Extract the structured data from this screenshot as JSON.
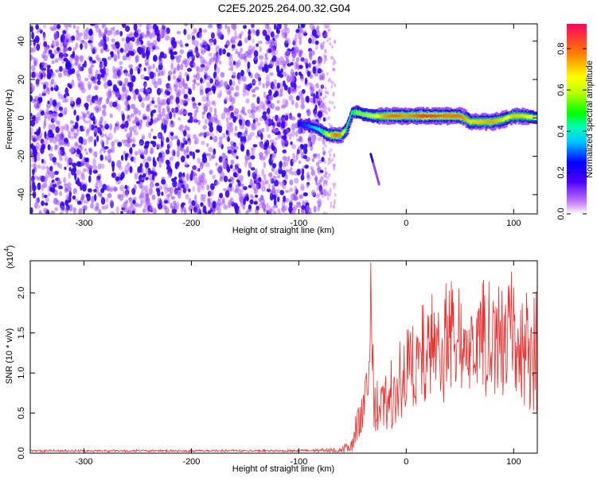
{
  "title": "C2E5.2025.264.00.32.G04",
  "chart_data": [
    {
      "type": "heatmap",
      "title": "C2E5.2025.264.00.32.G04",
      "xlabel": "Height of straight line (km)",
      "ylabel": "Frequency (Hz)",
      "xlim": [
        -350,
        122
      ],
      "ylim": [
        -50,
        49
      ],
      "xticks": [
        -300,
        -200,
        -100,
        0,
        100
      ],
      "xtick_labels": [
        "-300",
        "-200",
        "-100",
        "0",
        "100"
      ],
      "yticks": [
        -40,
        -20,
        0,
        20,
        40
      ],
      "ytick_labels": [
        "-40",
        "-20",
        "0",
        "20",
        "40"
      ],
      "colorbar": {
        "label": "Normalized spectral amplitude",
        "range": [
          0,
          0.92
        ],
        "ticks": [
          0.0,
          0.2,
          0.4,
          0.6,
          0.8
        ],
        "tick_labels": [
          "0.0",
          "0.2",
          "0.4",
          "0.6",
          "0.8"
        ]
      },
      "noise_region": {
        "x_from": -350,
        "x_to": -75,
        "amplitude": 0.15
      },
      "ridge": {
        "x": [
          -100,
          -90,
          -80,
          -75,
          -70,
          -65,
          -60,
          -55,
          -50,
          -45,
          -40,
          -30,
          -20,
          -10,
          0,
          10,
          20,
          30,
          40,
          50,
          55,
          60,
          70,
          80,
          90,
          95,
          100,
          110,
          122
        ],
        "y": [
          -3,
          -4,
          -6,
          -8,
          -9,
          -9,
          -9,
          -6,
          3,
          3,
          2,
          1,
          1,
          1,
          1,
          1,
          1,
          1,
          1,
          1,
          0,
          -2,
          -2,
          -2,
          -1,
          0,
          1,
          1,
          0
        ],
        "peak_amplitude": [
          0.25,
          0.3,
          0.4,
          0.55,
          0.7,
          0.8,
          0.75,
          0.5,
          0.45,
          0.55,
          0.55,
          0.6,
          0.75,
          0.8,
          0.75,
          0.8,
          0.85,
          0.82,
          0.78,
          0.8,
          0.75,
          0.7,
          0.72,
          0.75,
          0.7,
          0.65,
          0.72,
          0.7,
          0.6
        ]
      },
      "secondary_trace": {
        "x": [
          -33,
          -25
        ],
        "y": [
          -19,
          -35
        ]
      }
    },
    {
      "type": "line",
      "xlabel": "Height of straight line (km)",
      "ylabel": "SNR (10 * v/v)",
      "multiplier_base": "(x10",
      "multiplier_exponent": "4",
      "multiplier_close": ")",
      "xlim": [
        -350,
        122
      ],
      "ylim": [
        0,
        24000
      ],
      "xticks": [
        -300,
        -200,
        -100,
        0,
        100
      ],
      "xtick_labels": [
        "-300",
        "-200",
        "-100",
        "0",
        "100"
      ],
      "yticks": [
        0,
        5000,
        10000,
        15000,
        20000
      ],
      "ytick_labels": [
        "0.0",
        "0.5",
        "1.0",
        "1.5",
        "2.0"
      ],
      "series": [
        {
          "name": "SNR",
          "color": "#e8302e",
          "x": [
            -350,
            -300,
            -250,
            -200,
            -150,
            -100,
            -60,
            -50,
            -45,
            -40,
            -35,
            -33,
            -30,
            -20,
            -10,
            0,
            10,
            20,
            30,
            40,
            50,
            60,
            70,
            80,
            90,
            100,
            110,
            122
          ],
          "y": [
            300,
            300,
            300,
            300,
            300,
            300,
            400,
            1500,
            4000,
            6000,
            9000,
            20500,
            5000,
            6000,
            8000,
            10000,
            11500,
            12500,
            13500,
            14000,
            14500,
            14500,
            14500,
            14000,
            14000,
            15000,
            13500,
            12500
          ],
          "spread": [
            150,
            150,
            150,
            150,
            150,
            150,
            300,
            1500,
            2500,
            3000,
            4000,
            3500,
            3500,
            4500,
            5000,
            5500,
            6000,
            7000,
            7500,
            7500,
            7500,
            7500,
            7500,
            7500,
            7500,
            8000,
            8000,
            8500
          ]
        }
      ]
    }
  ]
}
